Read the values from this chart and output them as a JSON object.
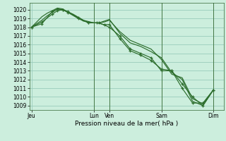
{
  "xlabel": "Pression niveau de la mer( hPa )",
  "ylim": [
    1008.5,
    1020.8
  ],
  "yticks": [
    1009,
    1010,
    1011,
    1012,
    1013,
    1014,
    1015,
    1016,
    1017,
    1018,
    1019,
    1020
  ],
  "bg_color": "#cceedd",
  "grid_color": "#99ccbb",
  "line_color": "#2d6e2d",
  "xlim": [
    -0.2,
    18.5
  ],
  "xtick_labels": [
    "Jeu",
    "Lun",
    "Ven",
    "Sam",
    "Dim"
  ],
  "xtick_positions": [
    0.0,
    6.0,
    7.5,
    12.5,
    17.5
  ],
  "vlines": [
    6.0,
    7.5,
    12.5,
    17.5
  ],
  "s1_x": [
    0.0,
    0.5,
    1.0,
    1.5,
    2.0,
    2.5,
    3.0,
    4.0,
    5.0,
    6.0,
    6.5,
    7.0,
    7.5,
    8.5,
    9.5,
    10.5,
    11.5,
    12.5,
    13.5,
    14.5,
    15.5,
    16.5,
    17.5
  ],
  "s1_y": [
    1018.0,
    1018.4,
    1018.8,
    1019.3,
    1019.7,
    1020.1,
    1020.0,
    1019.5,
    1018.8,
    1018.5,
    1018.5,
    1018.6,
    1018.8,
    1017.5,
    1016.5,
    1016.0,
    1015.5,
    1014.3,
    1012.6,
    1012.2,
    1009.8,
    1009.2,
    1010.8
  ],
  "s2_x": [
    0.0,
    0.5,
    1.0,
    1.5,
    2.0,
    2.5,
    3.0,
    4.0,
    5.0,
    6.0,
    6.5,
    7.0,
    7.5,
    8.5,
    9.5,
    10.5,
    11.5,
    12.5,
    13.5,
    14.5,
    15.5,
    16.5,
    17.5
  ],
  "s2_y": [
    1018.0,
    1018.6,
    1019.2,
    1019.6,
    1019.9,
    1020.2,
    1020.1,
    1019.4,
    1018.7,
    1018.5,
    1018.5,
    1018.7,
    1018.9,
    1017.3,
    1016.2,
    1015.8,
    1015.2,
    1014.5,
    1012.8,
    1012.0,
    1009.5,
    1009.0,
    1010.8
  ],
  "s3_x": [
    0.0,
    1.0,
    2.0,
    2.5,
    3.0,
    3.5,
    4.5,
    5.5,
    6.3,
    7.0,
    7.5,
    8.5,
    9.5,
    10.5,
    11.5,
    12.5,
    13.5,
    14.5,
    15.5,
    16.5,
    17.5
  ],
  "s3_y": [
    1018.0,
    1018.4,
    1019.8,
    1020.1,
    1020.0,
    1019.8,
    1019.1,
    1018.5,
    1018.5,
    1018.3,
    1018.3,
    1016.7,
    1015.3,
    1014.8,
    1014.2,
    1013.2,
    1013.0,
    1011.0,
    1009.3,
    1009.3,
    1010.8
  ],
  "s4_x": [
    0.0,
    1.0,
    2.0,
    2.5,
    3.0,
    3.5,
    4.5,
    5.5,
    6.5,
    7.5,
    8.5,
    9.5,
    10.5,
    11.5,
    12.5,
    13.5,
    14.5,
    15.5,
    16.5,
    17.5
  ],
  "s4_y": [
    1018.0,
    1018.6,
    1019.5,
    1019.9,
    1020.0,
    1019.7,
    1019.0,
    1018.5,
    1018.5,
    1018.0,
    1017.0,
    1015.5,
    1015.0,
    1014.5,
    1013.0,
    1013.0,
    1011.5,
    1010.0,
    1009.0,
    1010.8
  ]
}
